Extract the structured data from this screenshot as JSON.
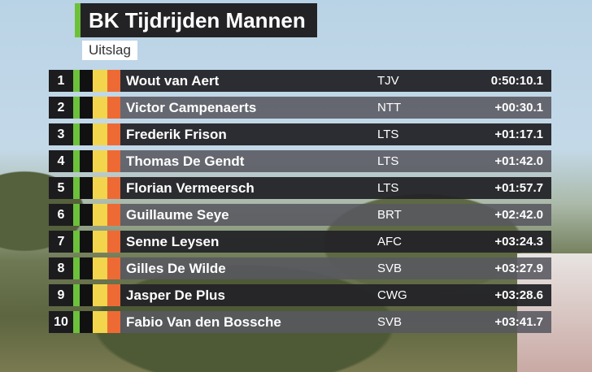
{
  "header": {
    "title": "BK Tijdrijden Mannen",
    "subtitle": "Uitslag"
  },
  "colors": {
    "green": "#6cc13a",
    "black": "#111111",
    "yellow": "#f2d54c",
    "red": "#ee6a35"
  },
  "results": [
    {
      "rank": "1",
      "name": "Wout van Aert",
      "team": "TJV",
      "time": "0:50:10.1"
    },
    {
      "rank": "2",
      "name": "Victor Campenaerts",
      "team": "NTT",
      "time": "+00:30.1"
    },
    {
      "rank": "3",
      "name": "Frederik Frison",
      "team": "LTS",
      "time": "+01:17.1"
    },
    {
      "rank": "4",
      "name": "Thomas De Gendt",
      "team": "LTS",
      "time": "+01:42.0"
    },
    {
      "rank": "5",
      "name": "Florian Vermeersch",
      "team": "LTS",
      "time": "+01:57.7"
    },
    {
      "rank": "6",
      "name": "Guillaume Seye",
      "team": "BRT",
      "time": "+02:42.0"
    },
    {
      "rank": "7",
      "name": "Senne Leysen",
      "team": "AFC",
      "time": "+03:24.3"
    },
    {
      "rank": "8",
      "name": "Gilles De Wilde",
      "team": "SVB",
      "time": "+03:27.9"
    },
    {
      "rank": "9",
      "name": "Jasper De Plus",
      "team": "CWG",
      "time": "+03:28.6"
    },
    {
      "rank": "10",
      "name": "Fabio Van den Bossche",
      "team": "SVB",
      "time": "+03:41.7"
    }
  ]
}
